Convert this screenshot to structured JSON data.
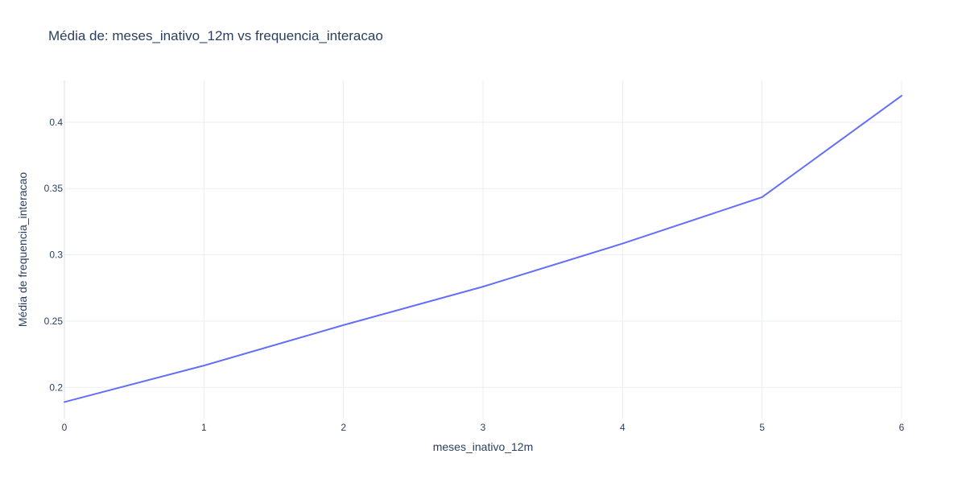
{
  "chart_data": {
    "type": "line",
    "title": "Média de: meses_inativo_12m vs frequencia_interacao",
    "xlabel": "meses_inativo_12m",
    "ylabel": "Média de frequencia_interacao",
    "x": [
      0,
      1,
      2,
      3,
      4,
      5,
      6
    ],
    "series": [
      {
        "values": [
          0.189,
          0.2165,
          0.247,
          0.276,
          0.3085,
          0.3435,
          0.42
        ]
      }
    ],
    "xlim": [
      0,
      6
    ],
    "ylim": [
      0.1765,
      0.4315
    ],
    "xticks": [
      0,
      1,
      2,
      3,
      4,
      5,
      6
    ],
    "xtick_labels": [
      "0",
      "1",
      "2",
      "3",
      "4",
      "5",
      "6"
    ],
    "yticks": [
      0.2,
      0.25,
      0.3,
      0.35,
      0.4
    ],
    "ytick_labels": [
      "0.2",
      "0.25",
      "0.3",
      "0.35",
      "0.4"
    ],
    "grid": true,
    "colors": {
      "series": "#636efa",
      "text": "#2a3f5f",
      "grid": "#ebeef2"
    }
  }
}
